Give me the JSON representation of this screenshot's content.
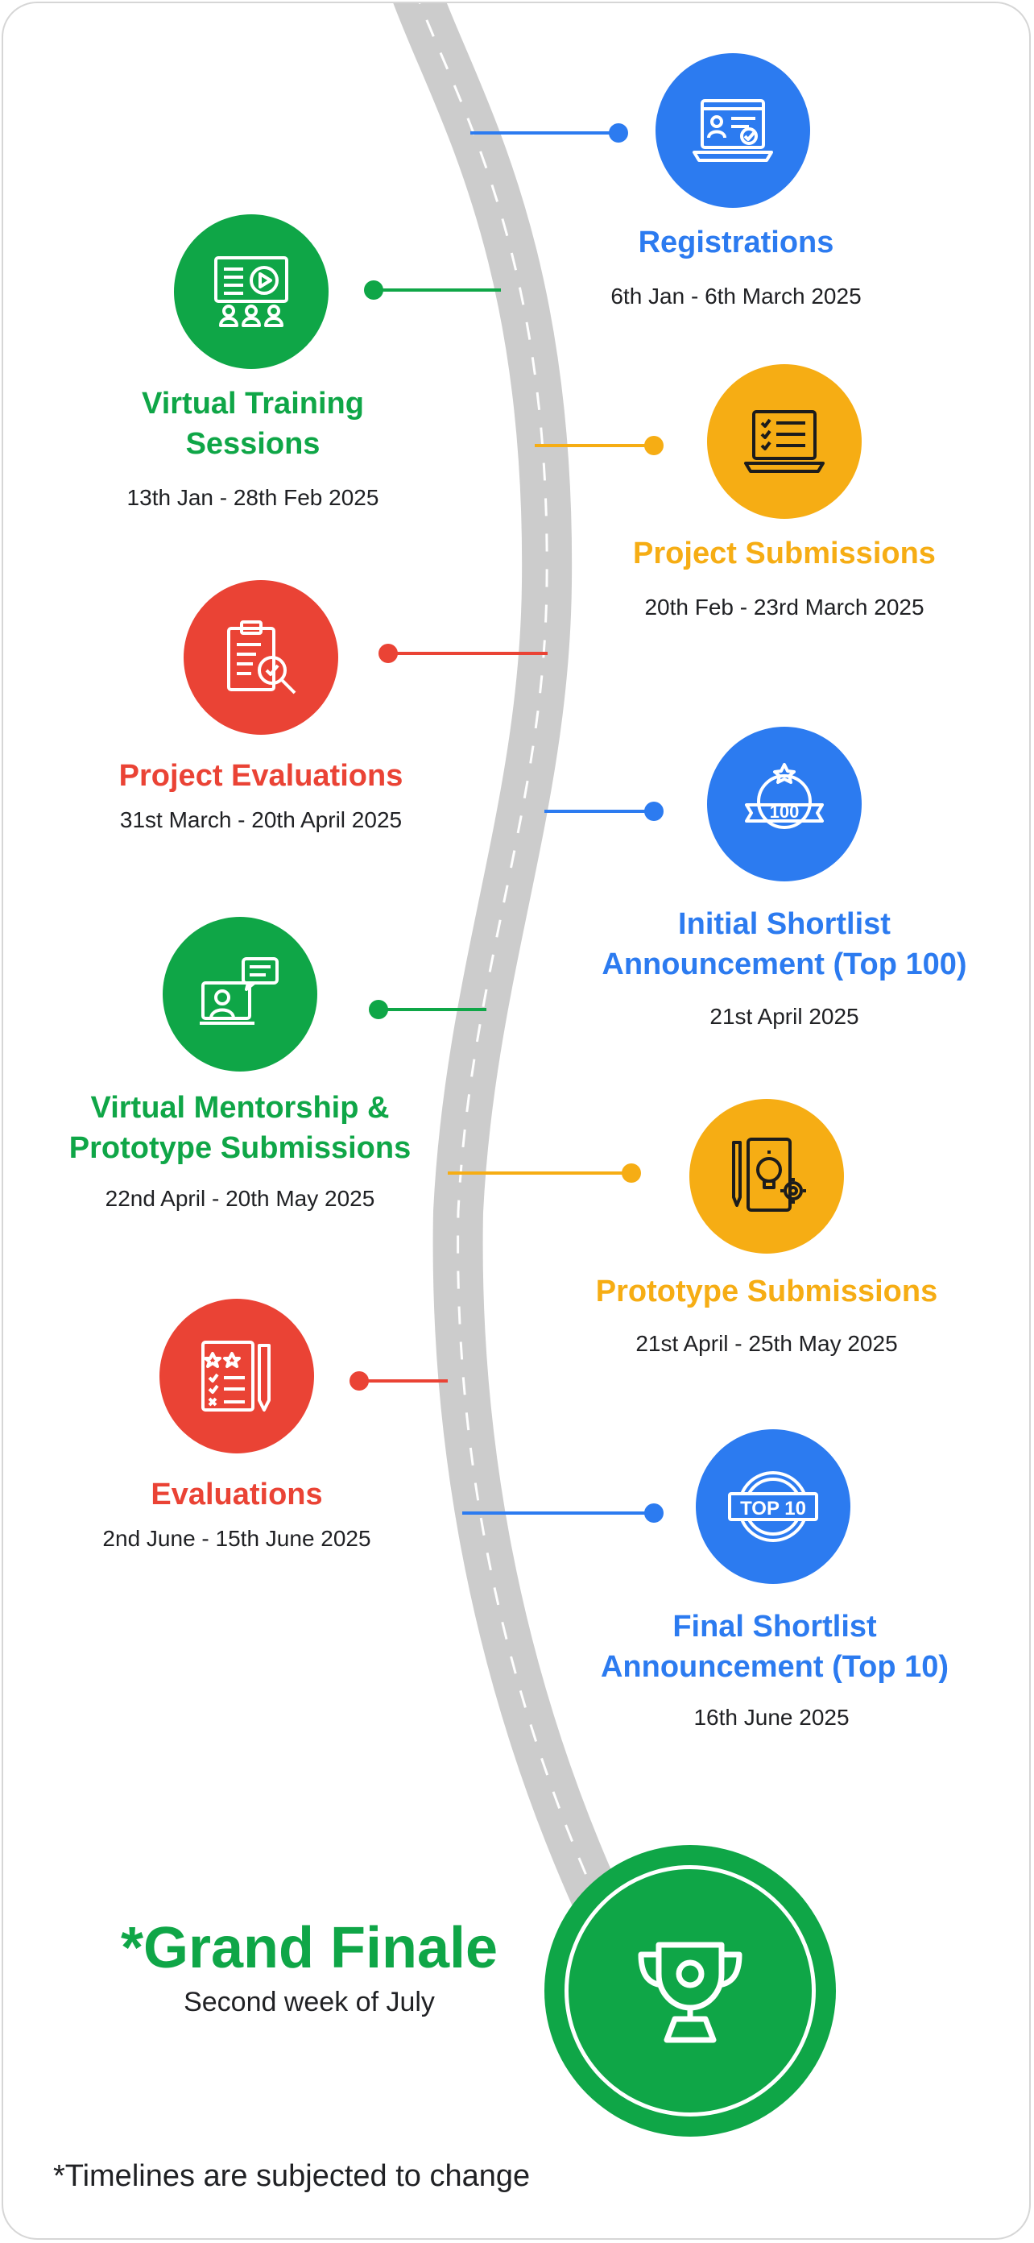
{
  "colors": {
    "blue": "#2c7bf0",
    "green": "#0fa647",
    "yellow": "#f6ad14",
    "red": "#ea4335",
    "road": "#cccccc",
    "text": "#202124"
  },
  "milestones": [
    {
      "title": "Registrations",
      "date": "6th Jan - 6th March 2025",
      "color": "blue",
      "icon": "laptop-registration-icon"
    },
    {
      "title": "Virtual Training Sessions",
      "date": "13th Jan - 28th Feb 2025",
      "color": "green",
      "icon": "video-training-icon"
    },
    {
      "title": "Project Submissions",
      "date": "20th Feb - 23rd March 2025",
      "color": "yellow",
      "icon": "laptop-checklist-icon"
    },
    {
      "title": "Project Evaluations",
      "date": "31st March - 20th April 2025",
      "color": "red",
      "icon": "clipboard-search-icon"
    },
    {
      "title": "Initial Shortlist Announcement (Top 100)",
      "date": "21st April 2025",
      "color": "blue",
      "icon": "top-100-badge-icon"
    },
    {
      "title": "Virtual Mentorship & Prototype Submissions",
      "date": "22nd April - 20th May 2025",
      "color": "green",
      "icon": "mentor-chat-icon"
    },
    {
      "title": "Prototype Submissions",
      "date": "21st April - 25th May 2025",
      "color": "yellow",
      "icon": "idea-gear-icon"
    },
    {
      "title": "Evaluations",
      "date": "2nd June - 15th June 2025",
      "color": "red",
      "icon": "scorecard-icon"
    },
    {
      "title": "Final Shortlist Announcement (Top 10)",
      "date": "16th June 2025",
      "color": "blue",
      "icon": "top-10-badge-icon"
    }
  ],
  "finale": {
    "title": "*Grand Finale",
    "subtitle": "Second week of July",
    "icon": "trophy-icon",
    "color": "green"
  },
  "footnote": "*Timelines are subjected to change"
}
